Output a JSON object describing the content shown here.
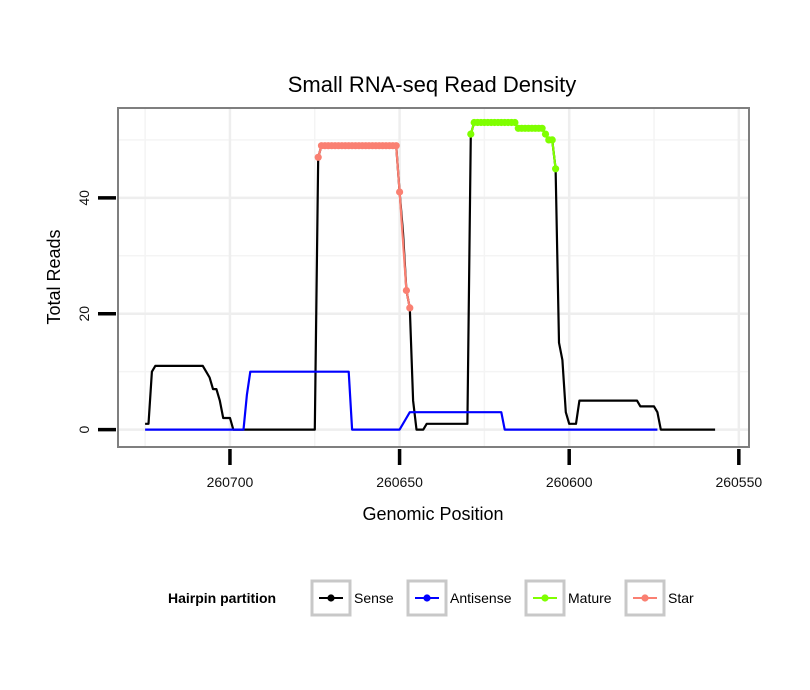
{
  "chart_data": {
    "type": "line",
    "title": "Small RNA-seq Read Density",
    "xlabel": "Genomic Position",
    "ylabel": "Total Reads",
    "xlim": [
      260733,
      260547
    ],
    "x_reversed": true,
    "ylim": [
      -3,
      55.5
    ],
    "x_ticks": [
      260700,
      260650,
      260600,
      260550
    ],
    "x_tick_labels": [
      "260700",
      "260650",
      "260600",
      "260550"
    ],
    "y_ticks": [
      0,
      20,
      40
    ],
    "y_tick_labels": [
      "0",
      "20",
      "40"
    ],
    "grid": true,
    "legend": {
      "title": "Hairpin partition",
      "placement": "bottom",
      "entries": [
        {
          "name": "Sense",
          "color": "#000000"
        },
        {
          "name": "Antisense",
          "color": "#0000ff"
        },
        {
          "name": "Mature",
          "color": "#7fff00"
        },
        {
          "name": "Star",
          "color": "#fa8072"
        }
      ]
    },
    "series": [
      {
        "name": "Sense",
        "color": "#000000",
        "points": [
          [
            260725,
            1
          ],
          [
            260724,
            1
          ],
          [
            260723,
            10
          ],
          [
            260722,
            11
          ],
          [
            260721,
            11
          ],
          [
            260708,
            11
          ],
          [
            260707,
            10
          ],
          [
            260706,
            9
          ],
          [
            260705,
            7
          ],
          [
            260704,
            7
          ],
          [
            260703,
            5
          ],
          [
            260702,
            2
          ],
          [
            260700,
            2
          ],
          [
            260699,
            0
          ],
          [
            260675,
            0
          ],
          [
            260674,
            47
          ],
          [
            260673,
            49
          ],
          [
            260651,
            49
          ],
          [
            260650,
            41
          ],
          [
            260649,
            34
          ],
          [
            260648,
            24
          ],
          [
            260647,
            21
          ],
          [
            260646,
            5
          ],
          [
            260645,
            0
          ],
          [
            260643,
            0
          ],
          [
            260642,
            1
          ],
          [
            260630,
            1
          ],
          [
            260629,
            51
          ],
          [
            260628,
            53
          ],
          [
            260616,
            53
          ],
          [
            260615,
            52
          ],
          [
            260608,
            52
          ],
          [
            260607,
            51
          ],
          [
            260606,
            50
          ],
          [
            260605,
            50
          ],
          [
            260604,
            45
          ],
          [
            260603,
            15
          ],
          [
            260602,
            12
          ],
          [
            260601,
            3
          ],
          [
            260600,
            1
          ],
          [
            260598,
            1
          ],
          [
            260597,
            5
          ],
          [
            260580,
            5
          ],
          [
            260579,
            4
          ],
          [
            260575,
            4
          ],
          [
            260574,
            3
          ],
          [
            260573,
            0
          ],
          [
            260557,
            0
          ]
        ]
      },
      {
        "name": "Antisense",
        "color": "#0000ff",
        "points": [
          [
            260725,
            0
          ],
          [
            260701,
            0
          ],
          [
            260696,
            0
          ],
          [
            260695,
            6
          ],
          [
            260694,
            10
          ],
          [
            260678,
            10
          ],
          [
            260677,
            10
          ],
          [
            260676,
            10
          ],
          [
            260675,
            10
          ],
          [
            260674,
            10
          ],
          [
            260673,
            10
          ],
          [
            260672,
            10
          ],
          [
            260671,
            10
          ],
          [
            260670,
            10
          ],
          [
            260669,
            10
          ],
          [
            260668,
            10
          ],
          [
            260667,
            10
          ],
          [
            260666,
            10
          ],
          [
            260665,
            10
          ],
          [
            260664,
            0
          ],
          [
            260650,
            0
          ],
          [
            260648,
            2
          ],
          [
            260647,
            3
          ],
          [
            260620,
            3
          ],
          [
            260619,
            0
          ],
          [
            260574,
            0
          ]
        ]
      },
      {
        "name": "Mature",
        "color": "#7fff00",
        "points": [
          [
            260629,
            51
          ],
          [
            260628,
            53
          ],
          [
            260627,
            53
          ],
          [
            260626,
            53
          ],
          [
            260625,
            53
          ],
          [
            260624,
            53
          ],
          [
            260623,
            53
          ],
          [
            260622,
            53
          ],
          [
            260621,
            53
          ],
          [
            260620,
            53
          ],
          [
            260619,
            53
          ],
          [
            260618,
            53
          ],
          [
            260617,
            53
          ],
          [
            260616,
            53
          ],
          [
            260615,
            52
          ],
          [
            260614,
            52
          ],
          [
            260613,
            52
          ],
          [
            260612,
            52
          ],
          [
            260611,
            52
          ],
          [
            260610,
            52
          ],
          [
            260609,
            52
          ],
          [
            260608,
            52
          ],
          [
            260607,
            51
          ],
          [
            260606,
            50
          ],
          [
            260605,
            50
          ],
          [
            260604,
            45
          ]
        ]
      },
      {
        "name": "Star",
        "color": "#fa8072",
        "points": [
          [
            260674,
            47
          ],
          [
            260673,
            49
          ],
          [
            260672,
            49
          ],
          [
            260671,
            49
          ],
          [
            260670,
            49
          ],
          [
            260669,
            49
          ],
          [
            260668,
            49
          ],
          [
            260667,
            49
          ],
          [
            260666,
            49
          ],
          [
            260665,
            49
          ],
          [
            260664,
            49
          ],
          [
            260663,
            49
          ],
          [
            260662,
            49
          ],
          [
            260661,
            49
          ],
          [
            260660,
            49
          ],
          [
            260659,
            49
          ],
          [
            260658,
            49
          ],
          [
            260657,
            49
          ],
          [
            260656,
            49
          ],
          [
            260655,
            49
          ],
          [
            260654,
            49
          ],
          [
            260653,
            49
          ],
          [
            260652,
            49
          ],
          [
            260651,
            49
          ],
          [
            260650,
            41
          ],
          [
            260648,
            24
          ],
          [
            260647,
            21
          ]
        ]
      }
    ]
  }
}
